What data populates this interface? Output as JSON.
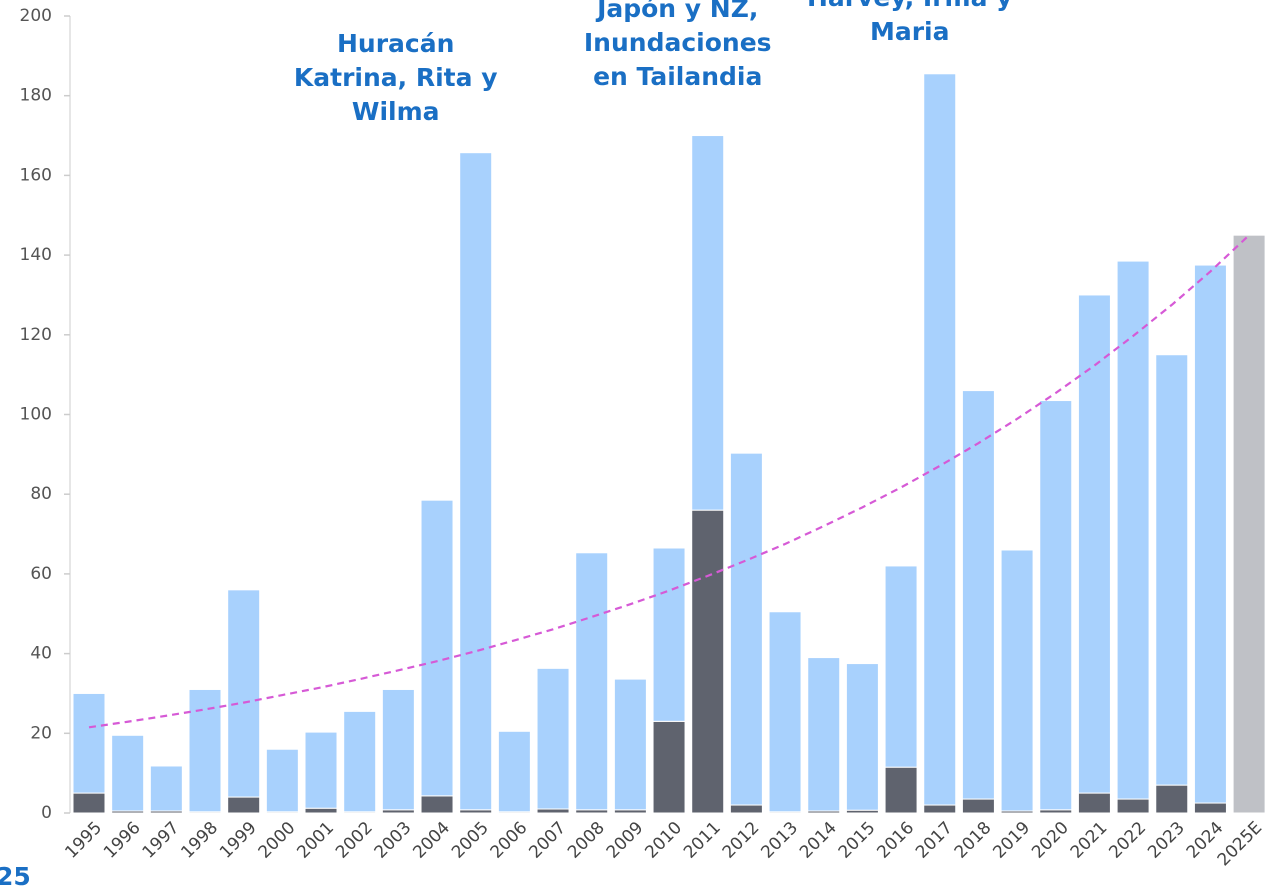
{
  "chart_data": {
    "type": "bar",
    "categories": [
      "1995",
      "1996",
      "1997",
      "1998",
      "1999",
      "2000",
      "2001",
      "2002",
      "2003",
      "2004",
      "2005",
      "2006",
      "2007",
      "2008",
      "2009",
      "2010",
      "2011",
      "2012",
      "2013",
      "2014",
      "2015",
      "2016",
      "2017",
      "2018",
      "2019",
      "2020",
      "2021",
      "2022",
      "2023",
      "2024",
      "2025E"
    ],
    "series": [
      {
        "color": "#5f636e",
        "values": [
          5,
          0.5,
          0.5,
          0.3,
          4,
          0.3,
          1.2,
          0.3,
          0.8,
          4.3,
          0.8,
          0.3,
          1,
          0.8,
          0.8,
          23,
          76,
          2,
          0.3,
          0.5,
          0.7,
          11.5,
          2,
          3.5,
          0.5,
          0.8,
          5,
          3.5,
          7,
          2.5,
          null
        ]
      },
      {
        "color": "#a8d1fd",
        "values": [
          25,
          19,
          11.3,
          30.7,
          52,
          15.7,
          19.1,
          25.2,
          30.2,
          74.2,
          164.9,
          20.2,
          35.3,
          64.5,
          32.8,
          43.5,
          94,
          88.3,
          50.2,
          38.5,
          36.8,
          50.5,
          183.5,
          102.5,
          65.5,
          102.7,
          125,
          135,
          108,
          135,
          null
        ]
      },
      {
        "color": "#bfc1c6",
        "values": [
          null,
          null,
          null,
          null,
          null,
          null,
          null,
          null,
          null,
          null,
          null,
          null,
          null,
          null,
          null,
          null,
          null,
          null,
          null,
          null,
          null,
          null,
          null,
          null,
          null,
          null,
          null,
          null,
          null,
          null,
          145
        ]
      }
    ],
    "trend": {
      "color": "#d65ad6",
      "values": [
        21.5,
        22.9,
        24.4,
        26.0,
        27.7,
        29.6,
        31.5,
        33.6,
        35.8,
        38.1,
        40.6,
        43.3,
        46.1,
        49.2,
        52.4,
        55.8,
        59.5,
        63.4,
        67.5,
        72.0,
        76.7,
        81.7,
        87.1,
        92.8,
        98.9,
        105.4,
        112.3,
        119.7,
        127.5,
        135.9,
        145
      ]
    },
    "ylim": [
      0,
      200
    ],
    "yticks": [
      0,
      20,
      40,
      60,
      80,
      100,
      120,
      140,
      160,
      180,
      200
    ],
    "annotations": [
      {
        "category": 10,
        "lines": [
          "Huracán",
          "Katrina, Rita y",
          "Wilma"
        ]
      },
      {
        "category": 16,
        "lines": [
          "Japón y NZ,",
          "Inundaciones",
          "en Tailandia"
        ]
      },
      {
        "category": 22,
        "lines": [
          "Harvey, Irma y",
          "Maria"
        ]
      }
    ],
    "footer": "25"
  }
}
